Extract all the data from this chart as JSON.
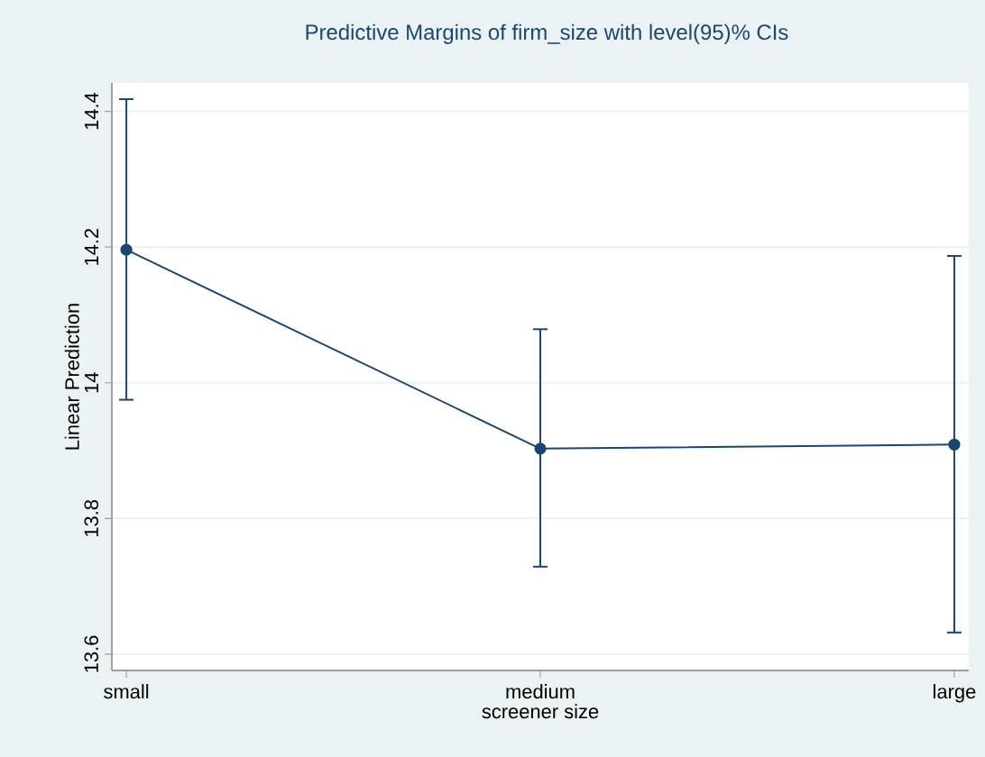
{
  "chart_data": {
    "type": "line",
    "title": "Predictive Margins of firm_size with level(95)% CIs",
    "xlabel": "screener size",
    "ylabel": "Linear Prediction",
    "categories": [
      "small",
      "medium",
      "large"
    ],
    "series": [
      {
        "color": "#1a476f",
        "values": [
          14.196,
          13.903,
          13.909
        ],
        "errors": [
          [
            13.975,
            14.418
          ],
          [
            13.729,
            14.079
          ],
          [
            13.632,
            14.187
          ]
        ]
      }
    ],
    "ylim": [
      13.576,
      14.442
    ],
    "yticks": [
      13.6,
      13.8,
      14,
      14.2,
      14.4
    ],
    "grid": "y",
    "marker": "circle",
    "line_style": "solid"
  }
}
